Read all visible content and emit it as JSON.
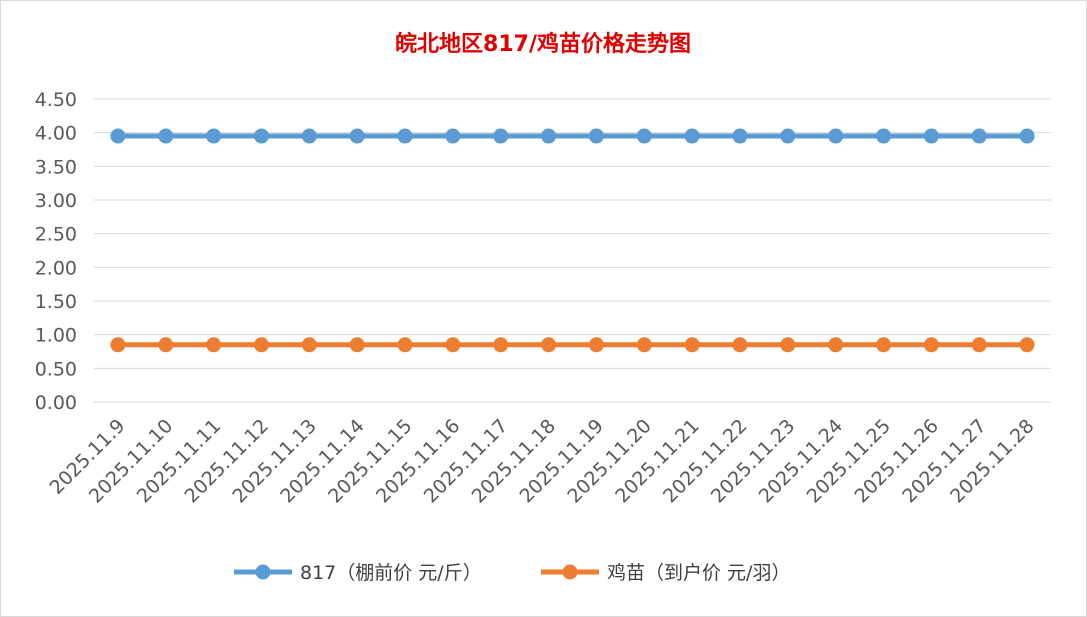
{
  "chart_data": {
    "type": "line",
    "title": "皖北地区817/鸡苗价格走势图",
    "xlabel": "",
    "ylabel": "",
    "categories": [
      "2025.11.9",
      "2025.11.10",
      "2025.11.11",
      "2025.11.12",
      "2025.11.13",
      "2025.11.14",
      "2025.11.15",
      "2025.11.16",
      "2025.11.17",
      "2025.11.18",
      "2025.11.19",
      "2025.11.20",
      "2025.11.21",
      "2025.11.22",
      "2025.11.23",
      "2025.11.24",
      "2025.11.25",
      "2025.11.26",
      "2025.11.27",
      "2025.11.28"
    ],
    "series": [
      {
        "name": "817（棚前价 元/斤）",
        "color": "#5b9bd5",
        "values": [
          3.95,
          3.95,
          3.95,
          3.95,
          3.95,
          3.95,
          3.95,
          3.95,
          3.95,
          3.95,
          3.95,
          3.95,
          3.95,
          3.95,
          3.95,
          3.95,
          3.95,
          3.95,
          3.95,
          3.95
        ]
      },
      {
        "name": "鸡苗（到户价 元/羽）",
        "color": "#ed7d31",
        "values": [
          0.85,
          0.85,
          0.85,
          0.85,
          0.85,
          0.85,
          0.85,
          0.85,
          0.85,
          0.85,
          0.85,
          0.85,
          0.85,
          0.85,
          0.85,
          0.85,
          0.85,
          0.85,
          0.85,
          0.85
        ]
      }
    ],
    "yticks": [
      "0.00",
      "0.50",
      "1.00",
      "1.50",
      "2.00",
      "2.50",
      "3.00",
      "3.50",
      "4.00",
      "4.50"
    ],
    "ylim": [
      0,
      4.5
    ],
    "grid": true,
    "legend_position": "bottom"
  }
}
